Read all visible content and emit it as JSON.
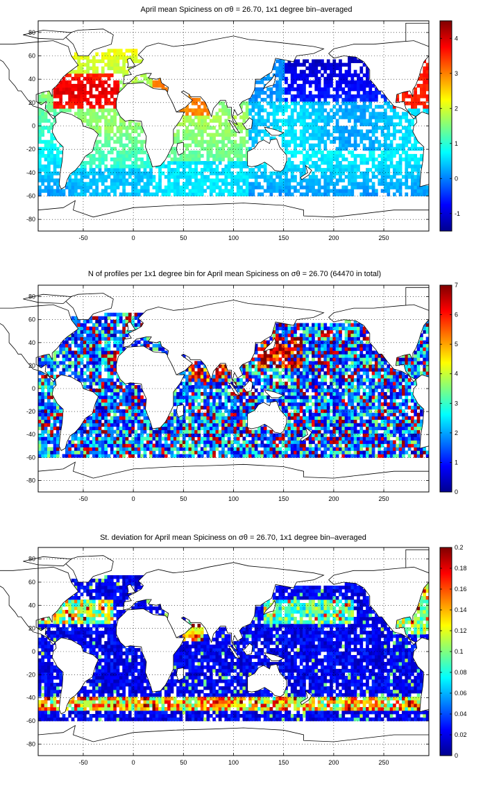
{
  "chart_data": [
    {
      "type": "heatmap",
      "title": "April mean Spiciness on σθ = 26.70, 1x1 degree bin–averaged",
      "x_ticks": [
        -50,
        0,
        50,
        100,
        150,
        200,
        250
      ],
      "y_ticks": [
        -80,
        -60,
        -40,
        -20,
        0,
        20,
        40,
        60,
        80
      ],
      "xlim": [
        -95,
        295
      ],
      "ylim": [
        -90,
        90
      ],
      "grid": true,
      "colorbar": {
        "range": [
          -1.5,
          4.5
        ],
        "ticks": [
          -1,
          0,
          1,
          2,
          3,
          4
        ],
        "colormap": "jet",
        "position": "right"
      },
      "field": "spice",
      "approx_values": {
        "north_atlantic_subtropics": 3.6,
        "arabian_sea": 3.0,
        "bay_of_bengal": 1.5,
        "tropical_atlantic": 1.5,
        "tropical_indian": 1.5,
        "south_atlantic": 0.8,
        "southern_indian": 0.7,
        "western_north_pacific": 0.2,
        "north_pacific": -0.6,
        "eastern_north_pacific_coast": 3.5,
        "south_pacific": 0.3,
        "southern_ocean_edge": -0.3
      }
    },
    {
      "type": "heatmap",
      "title": "N of profiles per 1x1 degree bin for April mean Spiciness on σθ = 26.70 (64470 in total)",
      "total_profiles": 64470,
      "x_ticks": [
        -50,
        0,
        50,
        100,
        150,
        200,
        250
      ],
      "y_ticks": [
        -80,
        -60,
        -40,
        -20,
        0,
        20,
        40,
        60,
        80
      ],
      "xlim": [
        -95,
        295
      ],
      "ylim": [
        -90,
        90
      ],
      "grid": true,
      "colorbar": {
        "range": [
          0,
          7
        ],
        "ticks": [
          0,
          1,
          2,
          3,
          4,
          5,
          6,
          7
        ],
        "colormap": "jet",
        "position": "right"
      },
      "field": "count",
      "approx_values": {
        "kuroshio_region": 7,
        "arabian_sea": 6,
        "bay_of_bengal": 6,
        "open_ocean_typical": 2
      }
    },
    {
      "type": "heatmap",
      "title": "St. deviation for April mean Spiciness on σθ = 26.70, 1x1 degree bin–averaged",
      "x_ticks": [
        -50,
        0,
        50,
        100,
        150,
        200,
        250
      ],
      "y_ticks": [
        -80,
        -60,
        -40,
        -20,
        0,
        20,
        40,
        60,
        80
      ],
      "xlim": [
        -95,
        295
      ],
      "ylim": [
        -90,
        90
      ],
      "grid": true,
      "colorbar": {
        "range": [
          0,
          0.2
        ],
        "ticks": [
          0,
          0.02,
          0.04,
          0.06,
          0.08,
          0.1,
          0.12,
          0.14,
          0.16,
          0.18,
          0.2
        ],
        "colormap": "jet",
        "position": "right"
      },
      "field": "std",
      "approx_values": {
        "open_ocean_typical": 0.02,
        "north_atlantic": 0.1,
        "kuroshio_extension": 0.12,
        "antarctic_circumpolar_band": 0.17,
        "arabian_sea_coast": 0.16
      }
    }
  ],
  "colors": {
    "jet_stops": [
      "#00008f",
      "#0000ff",
      "#00ffff",
      "#ffff00",
      "#ff0000",
      "#800000"
    ],
    "land": "#ffffff",
    "coast": "#000000",
    "grid": "#000000"
  },
  "axis": {
    "x_tick_labels": [
      "-50",
      "0",
      "50",
      "100",
      "150",
      "200",
      "250"
    ],
    "y_tick_labels": [
      "-80",
      "-60",
      "-40",
      "-20",
      "0",
      "20",
      "40",
      "60",
      "80"
    ],
    "cb1_labels": [
      "-1",
      "0",
      "1",
      "2",
      "3",
      "4"
    ],
    "cb2_labels": [
      "0",
      "1",
      "2",
      "3",
      "4",
      "5",
      "6",
      "7"
    ],
    "cb3_labels": [
      "0",
      "0.02",
      "0.04",
      "0.06",
      "0.08",
      "0.1",
      "0.12",
      "0.14",
      "0.16",
      "0.18",
      "0.2"
    ]
  }
}
